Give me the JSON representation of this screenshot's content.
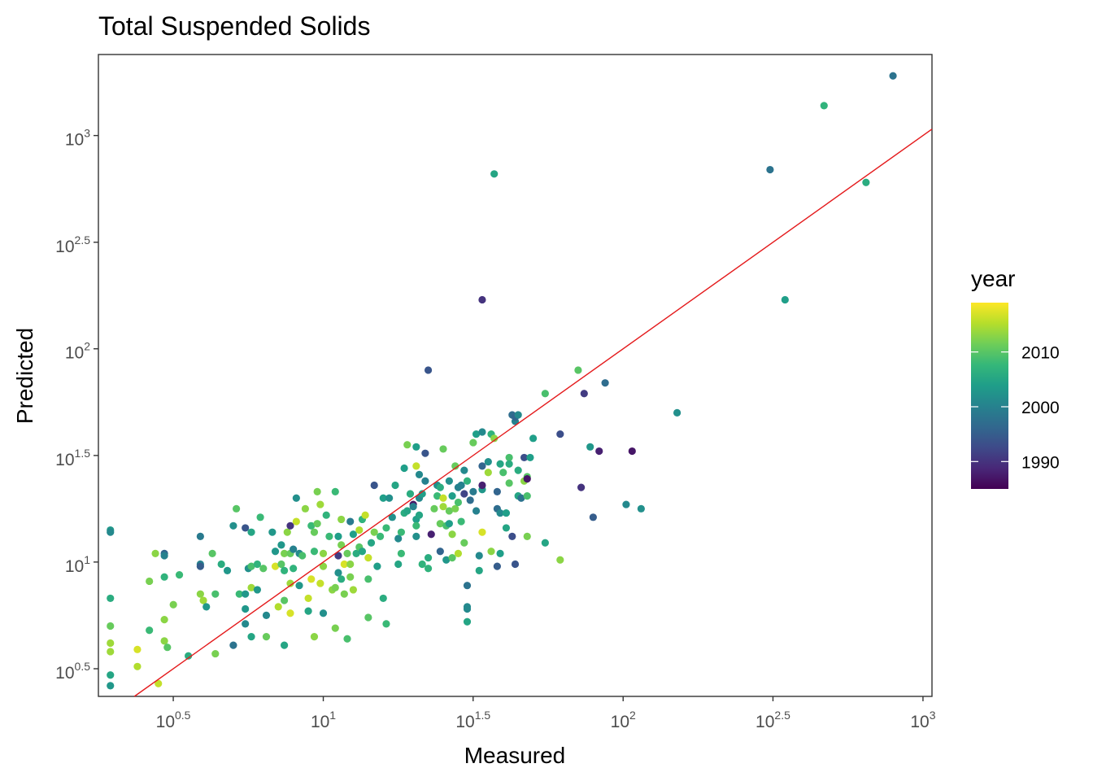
{
  "chart_data": {
    "type": "scatter",
    "title": "Total Suspended Solids",
    "xlabel": "Measured",
    "ylabel": "Predicted",
    "x_scale": "log10",
    "y_scale": "log10",
    "xlim_log10": [
      0.25,
      3.03
    ],
    "ylim_log10": [
      0.37,
      3.38
    ],
    "x_ticks": [
      {
        "base": "10",
        "exp": "0.5",
        "value": 3.16
      },
      {
        "base": "10",
        "exp": "1",
        "value": 10
      },
      {
        "base": "10",
        "exp": "1.5",
        "value": 31.6
      },
      {
        "base": "10",
        "exp": "2",
        "value": 100
      },
      {
        "base": "10",
        "exp": "2.5",
        "value": 316
      },
      {
        "base": "10",
        "exp": "3",
        "value": 1000
      }
    ],
    "y_ticks": [
      {
        "base": "10",
        "exp": "0.5",
        "value": 3.16
      },
      {
        "base": "10",
        "exp": "1",
        "value": 10
      },
      {
        "base": "10",
        "exp": "1.5",
        "value": 31.6
      },
      {
        "base": "10",
        "exp": "2",
        "value": 100
      },
      {
        "base": "10",
        "exp": "2.5",
        "value": 316
      },
      {
        "base": "10",
        "exp": "3",
        "value": 1000
      }
    ],
    "grid": false,
    "reference_line": {
      "type": "1:1",
      "color": "#e41a1c"
    },
    "legend": {
      "title": "year",
      "type": "colorbar",
      "palette": "viridis",
      "range": [
        1985,
        2019
      ],
      "labels": [
        "2010",
        "2000",
        "1990"
      ],
      "label_values": [
        2010,
        2000,
        1990
      ],
      "placement": "right"
    },
    "points_log10": [
      [
        0.29,
        1.15,
        2003
      ],
      [
        0.29,
        1.14,
        2001
      ],
      [
        0.29,
        0.83,
        2006
      ],
      [
        0.29,
        0.7,
        2011
      ],
      [
        0.29,
        0.62,
        2014
      ],
      [
        0.29,
        0.58,
        2014
      ],
      [
        0.29,
        0.47,
        2005
      ],
      [
        0.29,
        0.42,
        2003
      ],
      [
        0.38,
        0.59,
        2017
      ],
      [
        0.38,
        0.51,
        2015
      ],
      [
        0.42,
        0.91,
        2012
      ],
      [
        0.42,
        0.68,
        2008
      ],
      [
        0.44,
        1.04,
        2013
      ],
      [
        0.45,
        0.43,
        2016
      ],
      [
        0.47,
        1.04,
        1996
      ],
      [
        0.47,
        1.03,
        2000
      ],
      [
        0.47,
        0.93,
        2007
      ],
      [
        0.47,
        0.73,
        2013
      ],
      [
        0.47,
        0.63,
        2013
      ],
      [
        0.48,
        0.6,
        2010
      ],
      [
        0.5,
        0.8,
        2012
      ],
      [
        0.52,
        0.94,
        2008
      ],
      [
        0.55,
        0.56,
        2006
      ],
      [
        0.59,
        1.12,
        1999
      ],
      [
        0.59,
        0.99,
        2000
      ],
      [
        0.59,
        0.98,
        1995
      ],
      [
        0.59,
        0.85,
        2013
      ],
      [
        0.6,
        0.82,
        2014
      ],
      [
        0.61,
        0.79,
        2003
      ],
      [
        0.63,
        1.04,
        2010
      ],
      [
        0.64,
        0.85,
        2009
      ],
      [
        0.64,
        0.57,
        2012
      ],
      [
        0.66,
        0.99,
        2006
      ],
      [
        0.68,
        0.96,
        2003
      ],
      [
        0.7,
        1.17,
        2002
      ],
      [
        0.7,
        0.61,
        1998
      ],
      [
        0.71,
        1.25,
        2010
      ],
      [
        0.72,
        0.85,
        2008
      ],
      [
        0.74,
        1.16,
        1994
      ],
      [
        0.74,
        0.85,
        2003
      ],
      [
        0.74,
        0.78,
        2003
      ],
      [
        0.74,
        0.71,
        2001
      ],
      [
        0.75,
        0.97,
        2002
      ],
      [
        0.76,
        1.14,
        2005
      ],
      [
        0.76,
        0.98,
        2009
      ],
      [
        0.76,
        0.88,
        2014
      ],
      [
        0.76,
        0.65,
        2005
      ],
      [
        0.78,
        0.99,
        2007
      ],
      [
        0.78,
        0.87,
        2003
      ],
      [
        0.79,
        1.21,
        2008
      ],
      [
        0.8,
        0.97,
        2010
      ],
      [
        0.81,
        0.75,
        2001
      ],
      [
        0.81,
        0.65,
        2011
      ],
      [
        0.83,
        1.14,
        2003
      ],
      [
        0.84,
        1.05,
        2003
      ],
      [
        0.84,
        0.98,
        2017
      ],
      [
        0.85,
        0.79,
        2015
      ],
      [
        0.86,
        1.08,
        2003
      ],
      [
        0.86,
        0.99,
        2010
      ],
      [
        0.87,
        0.61,
        2005
      ],
      [
        0.87,
        1.04,
        2012
      ],
      [
        0.87,
        0.96,
        2007
      ],
      [
        0.87,
        0.82,
        2010
      ],
      [
        0.88,
        1.14,
        2013
      ],
      [
        0.89,
        1.04,
        2011
      ],
      [
        0.89,
        0.9,
        2014
      ],
      [
        0.89,
        0.76,
        2017
      ],
      [
        0.89,
        1.17,
        1990
      ],
      [
        0.9,
        1.06,
        2000
      ],
      [
        0.9,
        0.97,
        2007
      ],
      [
        0.91,
        1.3,
        2002
      ],
      [
        0.91,
        1.19,
        2016
      ],
      [
        0.92,
        1.04,
        2001
      ],
      [
        0.92,
        0.89,
        2003
      ],
      [
        0.93,
        1.03,
        2009
      ],
      [
        0.94,
        1.25,
        2013
      ],
      [
        0.95,
        0.83,
        2016
      ],
      [
        0.95,
        0.77,
        2005
      ],
      [
        0.96,
        1.17,
        2008
      ],
      [
        0.96,
        0.92,
        2017
      ],
      [
        0.97,
        1.14,
        2011
      ],
      [
        0.97,
        1.05,
        2008
      ],
      [
        0.97,
        0.65,
        2013
      ],
      [
        0.98,
        1.33,
        2012
      ],
      [
        0.98,
        1.18,
        2011
      ],
      [
        0.99,
        1.27,
        2014
      ],
      [
        0.99,
        0.9,
        2016
      ],
      [
        1.0,
        1.04,
        2013
      ],
      [
        1.0,
        0.98,
        2013
      ],
      [
        1.0,
        0.76,
        2002
      ],
      [
        1.01,
        1.22,
        2007
      ],
      [
        1.02,
        1.12,
        2008
      ],
      [
        1.03,
        0.87,
        2013
      ],
      [
        1.04,
        1.33,
        2008
      ],
      [
        1.04,
        0.88,
        2012
      ],
      [
        1.04,
        0.69,
        2012
      ],
      [
        1.05,
        1.12,
        2004
      ],
      [
        1.05,
        1.03,
        1991
      ],
      [
        1.05,
        0.95,
        2002
      ],
      [
        1.06,
        1.2,
        2013
      ],
      [
        1.06,
        1.08,
        2012
      ],
      [
        1.06,
        0.92,
        2006
      ],
      [
        1.07,
        0.99,
        2017
      ],
      [
        1.07,
        0.85,
        2012
      ],
      [
        1.08,
        1.04,
        2011
      ],
      [
        1.08,
        0.64,
        2009
      ],
      [
        1.09,
        1.19,
        1999
      ],
      [
        1.09,
        0.99,
        2013
      ],
      [
        1.09,
        0.93,
        2012
      ],
      [
        1.1,
        1.13,
        2004
      ],
      [
        1.1,
        0.87,
        2014
      ],
      [
        1.11,
        1.04,
        2006
      ],
      [
        1.12,
        1.15,
        2015
      ],
      [
        1.12,
        1.07,
        2010
      ],
      [
        1.13,
        1.2,
        2007
      ],
      [
        1.13,
        1.05,
        2005
      ],
      [
        1.14,
        1.22,
        2016
      ],
      [
        1.15,
        1.02,
        2016
      ],
      [
        1.15,
        0.92,
        2009
      ],
      [
        1.15,
        0.74,
        2010
      ],
      [
        1.16,
        1.09,
        2005
      ],
      [
        1.17,
        1.36,
        1994
      ],
      [
        1.17,
        1.14,
        2012
      ],
      [
        1.18,
        0.98,
        2004
      ],
      [
        1.19,
        1.12,
        2008
      ],
      [
        1.2,
        1.3,
        2004
      ],
      [
        1.2,
        0.83,
        2006
      ],
      [
        1.21,
        1.16,
        2008
      ],
      [
        1.21,
        0.71,
        2008
      ],
      [
        1.22,
        1.3,
        2002
      ],
      [
        1.23,
        1.21,
        2002
      ],
      [
        1.24,
        1.36,
        2005
      ],
      [
        1.25,
        1.11,
        2001
      ],
      [
        1.25,
        0.99,
        2005
      ],
      [
        1.26,
        1.14,
        2008
      ],
      [
        1.26,
        1.04,
        2008
      ],
      [
        1.27,
        1.23,
        2006
      ],
      [
        1.27,
        1.44,
        2004
      ],
      [
        1.28,
        1.55,
        2012
      ],
      [
        1.28,
        1.24,
        2005
      ],
      [
        1.29,
        1.32,
        2006
      ],
      [
        1.3,
        1.27,
        1987
      ],
      [
        1.3,
        1.26,
        2000
      ],
      [
        1.31,
        1.2,
        2004
      ],
      [
        1.31,
        1.17,
        2008
      ],
      [
        1.31,
        1.45,
        2016
      ],
      [
        1.31,
        1.54,
        2004
      ],
      [
        1.31,
        1.12,
        2002
      ],
      [
        1.32,
        1.41,
        2001
      ],
      [
        1.32,
        1.3,
        2001
      ],
      [
        1.32,
        1.22,
        2005
      ],
      [
        1.33,
        0.99,
        2007
      ],
      [
        1.33,
        1.32,
        2004
      ],
      [
        1.34,
        1.38,
        2000
      ],
      [
        1.34,
        1.51,
        1994
      ],
      [
        1.35,
        1.9,
        1994
      ],
      [
        1.35,
        0.97,
        2007
      ],
      [
        1.35,
        1.02,
        2006
      ],
      [
        1.36,
        1.13,
        1988
      ],
      [
        1.37,
        1.25,
        2011
      ],
      [
        1.38,
        1.36,
        2002
      ],
      [
        1.38,
        1.31,
        2008
      ],
      [
        1.39,
        1.18,
        2011
      ],
      [
        1.39,
        1.05,
        1996
      ],
      [
        1.39,
        1.35,
        2006
      ],
      [
        1.4,
        1.3,
        2016
      ],
      [
        1.4,
        1.53,
        2011
      ],
      [
        1.4,
        1.26,
        2014
      ],
      [
        1.41,
        1.17,
        2009
      ],
      [
        1.41,
        1.01,
        2003
      ],
      [
        1.42,
        1.18,
        2004
      ],
      [
        1.42,
        1.38,
        2002
      ],
      [
        1.42,
        1.24,
        2011
      ],
      [
        1.43,
        1.31,
        2004
      ],
      [
        1.43,
        1.02,
        2010
      ],
      [
        1.43,
        1.13,
        2013
      ],
      [
        1.44,
        1.45,
        2011
      ],
      [
        1.44,
        1.25,
        2012
      ],
      [
        1.45,
        1.35,
        2000
      ],
      [
        1.45,
        1.28,
        2009
      ],
      [
        1.45,
        1.04,
        2015
      ],
      [
        1.46,
        1.19,
        2008
      ],
      [
        1.46,
        1.36,
        2000
      ],
      [
        1.47,
        1.32,
        1992
      ],
      [
        1.47,
        1.43,
        2001
      ],
      [
        1.47,
        1.09,
        2011
      ],
      [
        1.48,
        1.38,
        2007
      ],
      [
        1.48,
        0.89,
        1998
      ],
      [
        1.48,
        0.79,
        2001
      ],
      [
        1.48,
        0.78,
        2001
      ],
      [
        1.48,
        0.72,
        2005
      ],
      [
        1.49,
        1.29,
        1997
      ],
      [
        1.5,
        1.33,
        1999
      ],
      [
        1.5,
        1.56,
        2011
      ],
      [
        1.51,
        1.6,
        2004
      ],
      [
        1.51,
        1.24,
        2000
      ],
      [
        1.52,
        1.03,
        2001
      ],
      [
        1.52,
        0.96,
        2005
      ],
      [
        1.53,
        1.45,
        1996
      ],
      [
        1.53,
        1.61,
        2001
      ],
      [
        1.53,
        1.34,
        2003
      ],
      [
        1.53,
        1.14,
        2017
      ],
      [
        1.53,
        1.36,
        1988
      ],
      [
        1.53,
        2.23,
        1990
      ],
      [
        1.55,
        1.47,
        2002
      ],
      [
        1.55,
        1.42,
        2014
      ],
      [
        1.56,
        1.6,
        2007
      ],
      [
        1.56,
        1.05,
        2013
      ],
      [
        1.57,
        1.58,
        2013
      ],
      [
        1.57,
        2.82,
        2005
      ],
      [
        1.58,
        1.33,
        1996
      ],
      [
        1.58,
        1.25,
        1997
      ],
      [
        1.58,
        0.98,
        1995
      ],
      [
        1.59,
        1.23,
        2001
      ],
      [
        1.59,
        1.46,
        2005
      ],
      [
        1.59,
        1.04,
        2004
      ],
      [
        1.6,
        1.42,
        2009
      ],
      [
        1.61,
        1.23,
        2004
      ],
      [
        1.61,
        1.16,
        2005
      ],
      [
        1.62,
        1.49,
        2009
      ],
      [
        1.62,
        1.37,
        2010
      ],
      [
        1.62,
        1.46,
        2006
      ],
      [
        1.63,
        1.69,
        1997
      ],
      [
        1.63,
        1.12,
        1993
      ],
      [
        1.64,
        1.66,
        2000
      ],
      [
        1.64,
        1.68,
        1996
      ],
      [
        1.64,
        0.99,
        1994
      ],
      [
        1.65,
        1.43,
        2006
      ],
      [
        1.65,
        1.31,
        2005
      ],
      [
        1.65,
        1.69,
        2001
      ],
      [
        1.66,
        1.3,
        1998
      ],
      [
        1.67,
        1.38,
        2013
      ],
      [
        1.67,
        1.49,
        1993
      ],
      [
        1.68,
        1.31,
        2009
      ],
      [
        1.68,
        1.4,
        2010
      ],
      [
        1.68,
        1.39,
        1987
      ],
      [
        1.68,
        1.12,
        2012
      ],
      [
        1.69,
        1.49,
        2004
      ],
      [
        1.7,
        1.58,
        2004
      ],
      [
        1.74,
        1.79,
        2009
      ],
      [
        1.74,
        1.09,
        2005
      ],
      [
        1.79,
        1.01,
        2013
      ],
      [
        1.79,
        1.6,
        1993
      ],
      [
        1.85,
        1.9,
        2010
      ],
      [
        1.86,
        1.35,
        1990
      ],
      [
        1.87,
        1.79,
        1991
      ],
      [
        1.89,
        1.54,
        2003
      ],
      [
        1.92,
        1.52,
        1988
      ],
      [
        1.94,
        1.84,
        1997
      ],
      [
        1.9,
        1.21,
        1995
      ],
      [
        2.03,
        1.52,
        1987
      ],
      [
        2.01,
        1.27,
        2001
      ],
      [
        2.06,
        1.25,
        2002
      ],
      [
        2.18,
        1.7,
        2002
      ],
      [
        2.49,
        2.84,
        1998
      ],
      [
        2.54,
        2.23,
        2004
      ],
      [
        2.67,
        3.14,
        2007
      ],
      [
        2.81,
        2.78,
        2006
      ],
      [
        2.9,
        3.28,
        1998
      ]
    ]
  }
}
